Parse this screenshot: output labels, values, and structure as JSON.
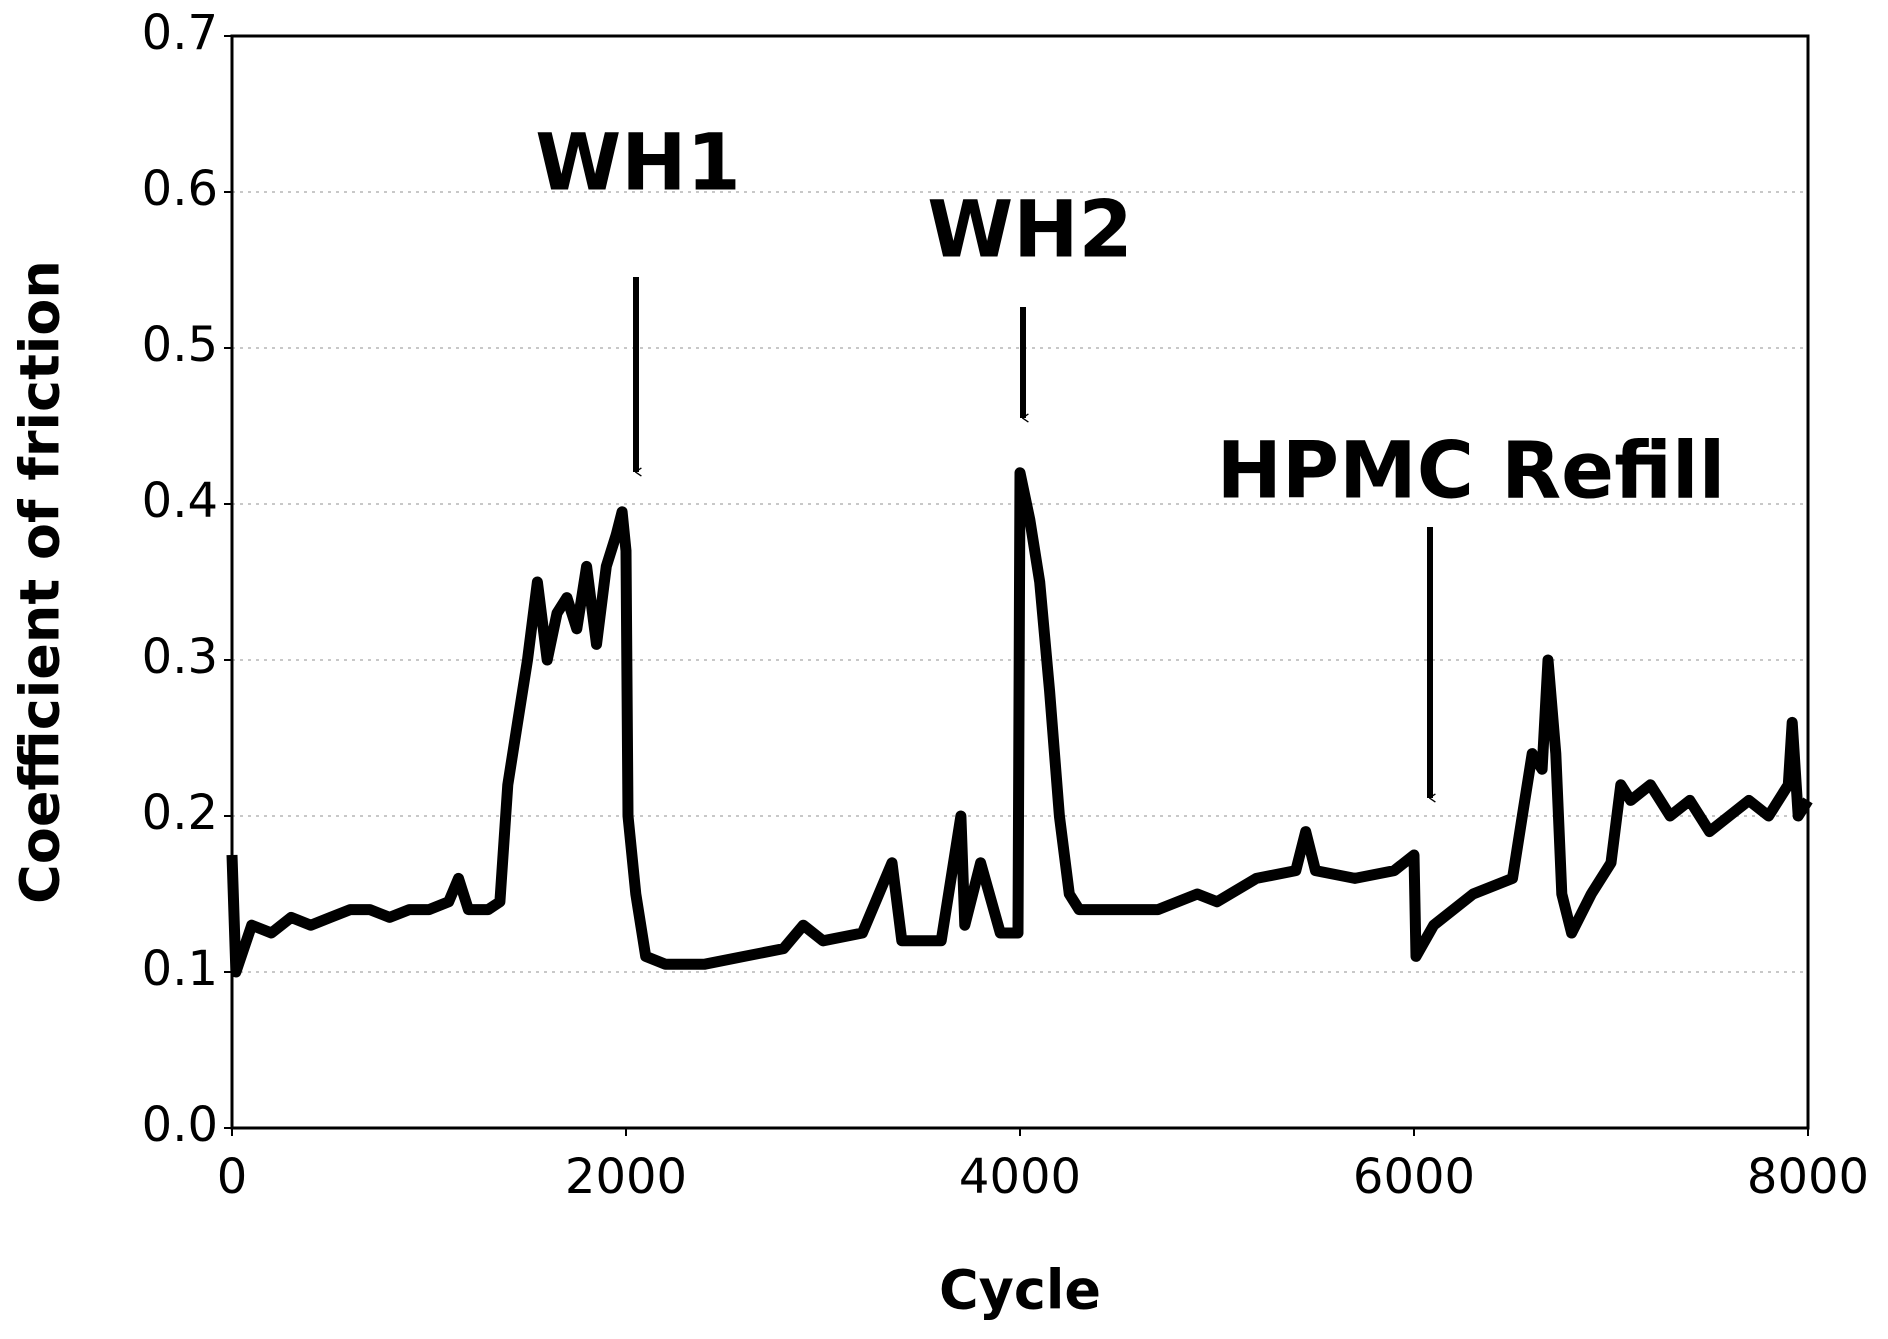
{
  "chart_data": {
    "type": "line",
    "x_label": "Cycle",
    "y_label": "Coefficient of friction",
    "annotations": [
      "WH1",
      "WH2",
      "HPMC Refill"
    ],
    "xlim": [
      0,
      8000
    ],
    "xticks": [
      0,
      2000,
      4000,
      6000,
      8000
    ],
    "ylim": [
      0,
      0.7
    ],
    "yticks": [
      {
        "value": 0,
        "label": "0.0"
      },
      0.1,
      0.2,
      0.3,
      0.4,
      0.5,
      0.6,
      0.7
    ],
    "grid": true,
    "series": [
      {
        "color": "#000000",
        "x": [
          0,
          20,
          100,
          200,
          300,
          400,
          500,
          600,
          700,
          800,
          900,
          1000,
          1100,
          1150,
          1200,
          1300,
          1360,
          1400,
          1450,
          1500,
          1550,
          1600,
          1650,
          1700,
          1750,
          1800,
          1850,
          1900,
          1950,
          1980,
          2000,
          2010,
          2050,
          2100,
          2200,
          2400,
          2600,
          2800,
          2900,
          3000,
          3200,
          3350,
          3400,
          3600,
          3700,
          3720,
          3800,
          3900,
          3990,
          4000,
          4050,
          4100,
          4150,
          4200,
          4250,
          4300,
          4500,
          4700,
          4900,
          5000,
          5200,
          5400,
          5450,
          5500,
          5700,
          5900,
          6000,
          6010,
          6100,
          6300,
          6500,
          6550,
          6600,
          6650,
          6680,
          6720,
          6750,
          6800,
          6900,
          7000,
          7050,
          7100,
          7200,
          7300,
          7400,
          7500,
          7600,
          7700,
          7800,
          7900,
          7920,
          7950,
          8000
        ],
        "values": [
          0.175,
          0.1,
          0.13,
          0.125,
          0.135,
          0.13,
          0.135,
          0.14,
          0.14,
          0.135,
          0.14,
          0.14,
          0.145,
          0.16,
          0.14,
          0.14,
          0.145,
          0.22,
          0.26,
          0.3,
          0.35,
          0.3,
          0.33,
          0.34,
          0.32,
          0.36,
          0.31,
          0.36,
          0.38,
          0.395,
          0.37,
          0.2,
          0.15,
          0.11,
          0.105,
          0.105,
          0.11,
          0.115,
          0.13,
          0.12,
          0.125,
          0.17,
          0.12,
          0.12,
          0.2,
          0.13,
          0.17,
          0.125,
          0.125,
          0.42,
          0.39,
          0.35,
          0.28,
          0.2,
          0.15,
          0.14,
          0.14,
          0.14,
          0.15,
          0.145,
          0.16,
          0.165,
          0.19,
          0.165,
          0.16,
          0.165,
          0.175,
          0.11,
          0.13,
          0.15,
          0.16,
          0.2,
          0.24,
          0.23,
          0.3,
          0.24,
          0.15,
          0.125,
          0.15,
          0.17,
          0.22,
          0.21,
          0.22,
          0.2,
          0.21,
          0.19,
          0.2,
          0.21,
          0.2,
          0.22,
          0.26,
          0.2,
          0.21
        ]
      }
    ]
  }
}
